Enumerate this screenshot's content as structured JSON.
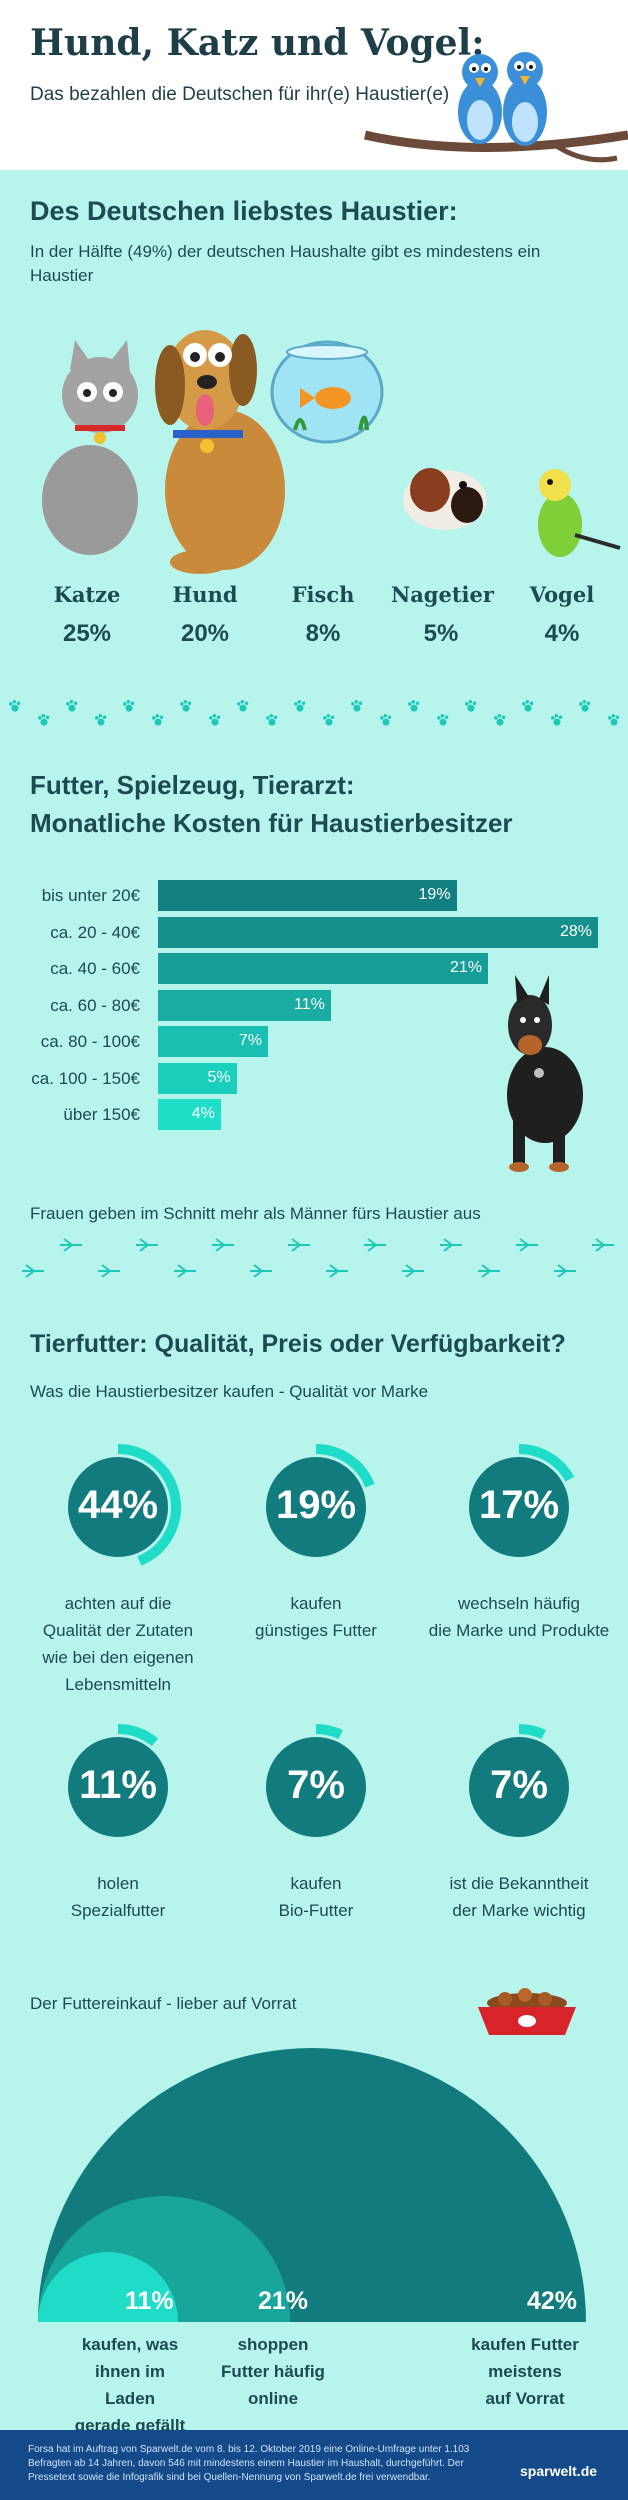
{
  "header": {
    "title": "Hund, Katz und Vogel:",
    "subtitle": "Das bezahlen die Deutschen für ihr(e) Haustier(e)"
  },
  "section1": {
    "heading": "Des Deutschen liebstes Haustier:",
    "text": "In der Hälfte (49%) der deutschen Haushalte gibt es mindestens ein Haustier"
  },
  "chart_data": [
    {
      "type": "table",
      "title": "Des Deutschen liebstes Haustier:",
      "categories": [
        "Katze",
        "Hund",
        "Fisch",
        "Nagetier",
        "Vogel"
      ],
      "values": [
        25,
        20,
        8,
        5,
        4
      ],
      "labels": [
        "25%",
        "20%",
        "8%",
        "5%",
        "4%"
      ]
    },
    {
      "type": "bar",
      "title": "Futter, Spielzeug, Tierarzt: Monatliche Kosten für Haustierbesitzer",
      "categories": [
        "bis unter 20€",
        "ca. 20 - 40€",
        "ca. 40 - 60€",
        "ca. 60 - 80€",
        "ca. 80 - 100€",
        "ca. 100 - 150€",
        "über 150€"
      ],
      "values": [
        19,
        28,
        21,
        11,
        7,
        5,
        4
      ],
      "labels": [
        "19%",
        "28%",
        "21%",
        "11%",
        "7%",
        "5%",
        "4%"
      ],
      "xlim": [
        0,
        28
      ]
    },
    {
      "type": "pie",
      "title": "Tierfutter: Qualität, Preis oder Verfügbarkeit?",
      "categories": [
        "achten auf die Qualität der Zutaten wie bei den eigenen Lebensmitteln",
        "kaufen günstiges Futter",
        "wechseln häufig die Marke und Produkte",
        "holen Spezialfutter",
        "kaufen Bio-Futter",
        "ist die Bekanntheit der Marke wichtig"
      ],
      "values": [
        44,
        19,
        17,
        11,
        7,
        7
      ],
      "labels": [
        "44%",
        "19%",
        "17%",
        "11%",
        "7%",
        "7%"
      ]
    },
    {
      "type": "area",
      "title": "Der Futtereinkauf - lieber auf Vorrat",
      "categories": [
        "kaufen, was ihnen im Laden gerade gefällt",
        "shoppen Futter häufig online",
        "kaufen Futter meistens auf Vorrat"
      ],
      "values": [
        11,
        21,
        42
      ],
      "labels": [
        "11%",
        "21%",
        "42%"
      ]
    }
  ],
  "pets": {
    "labels": [
      "Katze",
      "Hund",
      "Fisch",
      "Nagetier",
      "Vogel"
    ],
    "pcts": [
      "25%",
      "20%",
      "8%",
      "5%",
      "4%"
    ]
  },
  "section2": {
    "heading_line1": "Futter, Spielzeug, Tierarzt:",
    "heading_line2": "Monatliche Kosten für Haustierbesitzer",
    "bars": [
      {
        "label": "bis unter 20€",
        "value": 19,
        "text": "19%",
        "color": "#137f80"
      },
      {
        "label": "ca. 20 - 40€",
        "value": 28,
        "text": "28%",
        "color": "#158f8c"
      },
      {
        "label": "ca. 40 - 60€",
        "value": 21,
        "text": "21%",
        "color": "#179e98"
      },
      {
        "label": "ca. 60 - 80€",
        "value": 11,
        "text": "11%",
        "color": "#19aca3"
      },
      {
        "label": "ca. 80 - 100€",
        "value": 7,
        "text": "7%",
        "color": "#1bbfb1"
      },
      {
        "label": "ca. 100 - 150€",
        "value": 5,
        "text": "5%",
        "color": "#1ccfbd"
      },
      {
        "label": "über 150€",
        "value": 4,
        "text": "4%",
        "color": "#1fdfc9"
      }
    ],
    "note": "Frauen geben im Schnitt mehr als Männer fürs Haustier aus"
  },
  "section3": {
    "heading": "Tierfutter: Qualität, Preis oder Verfügbarkeit?",
    "subheading": "Was die Haustierbesitzer kaufen - Qualität vor Marke",
    "rings": [
      {
        "pct": "44%",
        "value": 44,
        "label": [
          "achten auf die",
          "Qualität der Zutaten",
          "wie bei den eigenen",
          "Lebensmitteln"
        ]
      },
      {
        "pct": "19%",
        "value": 19,
        "label": [
          "kaufen",
          "günstiges Futter"
        ]
      },
      {
        "pct": "17%",
        "value": 17,
        "label": [
          "wechseln häufig",
          "die Marke und Produkte"
        ]
      },
      {
        "pct": "11%",
        "value": 11,
        "label": [
          "holen",
          "Spezialfutter"
        ]
      },
      {
        "pct": "7%",
        "value": 7,
        "label": [
          "kaufen",
          "Bio-Futter"
        ]
      },
      {
        "pct": "7%",
        "value": 7,
        "label": [
          "ist die Bekanntheit",
          "der Marke wichtig"
        ]
      }
    ]
  },
  "section4": {
    "heading": "Der Futtereinkauf - lieber auf Vorrat",
    "items": [
      {
        "pct": "11%",
        "label": [
          "kaufen, was",
          "ihnen im Laden",
          "gerade gefällt"
        ]
      },
      {
        "pct": "21%",
        "label": [
          "shoppen",
          "Futter häufig",
          "online"
        ]
      },
      {
        "pct": "42%",
        "label": [
          "kaufen Futter",
          "meistens",
          "auf Vorrat"
        ]
      }
    ]
  },
  "footer": {
    "text": "Forsa hat im Auftrag von Sparwelt.de vom 8. bis 12. Oktober 2019 eine Online-Umfrage unter 1.103 Befragten ab 14 Jahren, davon 546 mit mindestens einem Haustier im Haushalt, durchgeführt. Der Pressetext sowie die Infografik sind bei Quellen-Nennung von Sparwelt.de frei verwendbar.",
    "brand": "sparwelt.de"
  },
  "colors": {
    "background": "#b6f4ec",
    "dark_teal": "#127b7e",
    "accent": "#1fdcc8",
    "footer": "#14498a",
    "text": "#1e4a52"
  }
}
